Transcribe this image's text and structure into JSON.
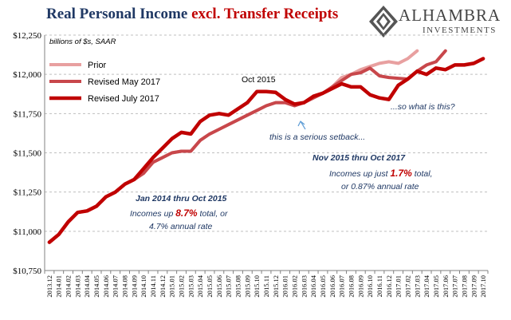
{
  "title_part1": "Real Personal Income ",
  "title_part2": "excl. Transfer Receipts",
  "logo": {
    "name": "ALHAMBRA",
    "sub": "INVESTMENTS",
    "icon": "alhambra-diamond-icon"
  },
  "colors": {
    "prior": "#e8a0a0",
    "revised_may": "#c8474b",
    "revised_july": "#c00000",
    "title": "#1f3864",
    "annotation": "#1f3864",
    "accent": "#c00000"
  },
  "chart_data": {
    "type": "line",
    "units": "billions of $s, SAAR",
    "ylim": [
      10750,
      12250
    ],
    "yticks": [
      "$10,750",
      "$11,000",
      "$11,250",
      "$11,500",
      "$11,750",
      "$12,000",
      "$12,250"
    ],
    "ytick_values": [
      10750,
      11000,
      11250,
      11500,
      11750,
      12000,
      12250
    ],
    "grid": "horizontal dashed",
    "legend_position": "top-left",
    "x": [
      "2013.12",
      "2014.01",
      "2014.02",
      "2014.03",
      "2014.04",
      "2014.05",
      "2014.06",
      "2014.07",
      "2014.08",
      "2014.09",
      "2014.10",
      "2014.11",
      "2014.12",
      "2015.01",
      "2015.02",
      "2015.03",
      "2015.04",
      "2015.05",
      "2015.06",
      "2015.07",
      "2015.08",
      "2015.09",
      "2015.10",
      "2015.11",
      "2015.12",
      "2016.01",
      "2016.02",
      "2016.03",
      "2016.04",
      "2016.05",
      "2016.06",
      "2016.07",
      "2016.08",
      "2016.09",
      "2016.10",
      "2016.11",
      "2016.12",
      "2017.01",
      "2017.02",
      "2017.03",
      "2017.04",
      "2017.05",
      "2017.06",
      "2017.07",
      "2017.08",
      "2017.09",
      "2017.10"
    ],
    "series": [
      {
        "name": "Prior",
        "color": "#e8a0a0",
        "width": 4,
        "values": [
          10930,
          10980,
          11060,
          11120,
          11130,
          11160,
          11220,
          11250,
          11300,
          11330,
          11370,
          11440,
          11470,
          11500,
          11510,
          11510,
          11580,
          11620,
          11650,
          11680,
          11710,
          11740,
          11770,
          11800,
          11820,
          11820,
          11800,
          11820,
          11850,
          11880,
          11920,
          11980,
          12000,
          12030,
          12050,
          12070,
          12080,
          12070,
          12100,
          12150,
          null,
          null,
          null,
          null,
          null,
          null,
          null
        ]
      },
      {
        "name": "Revised May 2017",
        "color": "#c8474b",
        "width": 4,
        "values": [
          10930,
          10980,
          11060,
          11120,
          11130,
          11160,
          11220,
          11250,
          11300,
          11330,
          11370,
          11440,
          11470,
          11500,
          11510,
          11510,
          11580,
          11620,
          11650,
          11680,
          11710,
          11740,
          11770,
          11800,
          11820,
          11820,
          11800,
          11820,
          11850,
          11880,
          11920,
          11960,
          12000,
          12010,
          12040,
          11990,
          11980,
          11975,
          11970,
          12020,
          12060,
          12080,
          12150,
          null,
          null,
          null,
          null
        ]
      },
      {
        "name": "Revised July 2017",
        "color": "#c00000",
        "width": 4.5,
        "values": [
          10930,
          10980,
          11060,
          11120,
          11130,
          11160,
          11220,
          11250,
          11300,
          11330,
          11400,
          11470,
          11530,
          11590,
          11630,
          11620,
          11700,
          11740,
          11750,
          11740,
          11780,
          11820,
          11890,
          11890,
          11885,
          11840,
          11810,
          11820,
          11860,
          11880,
          11910,
          11940,
          11920,
          11920,
          11870,
          11850,
          11840,
          11930,
          11970,
          12020,
          12000,
          12040,
          12030,
          12060,
          12060,
          12070,
          12100
        ]
      }
    ],
    "annotations": {
      "oct2015": "Oct 2015",
      "setback": "this is a serious setback...",
      "sowhat": "...so what is this?",
      "nov_title": "Nov 2015 thru Oct 2017",
      "nov_line1_a": "Incomes up just ",
      "nov_line1_b": "1.7%",
      "nov_line1_c": " total,",
      "nov_line2": "or 0.87% annual rate",
      "jan_title": "Jan 2014 thru Oct 2015",
      "jan_line1_a": "Incomes up ",
      "jan_line1_b": "8.7%",
      "jan_line1_c": " total, or",
      "jan_line2": "4.7% annual rate"
    }
  }
}
